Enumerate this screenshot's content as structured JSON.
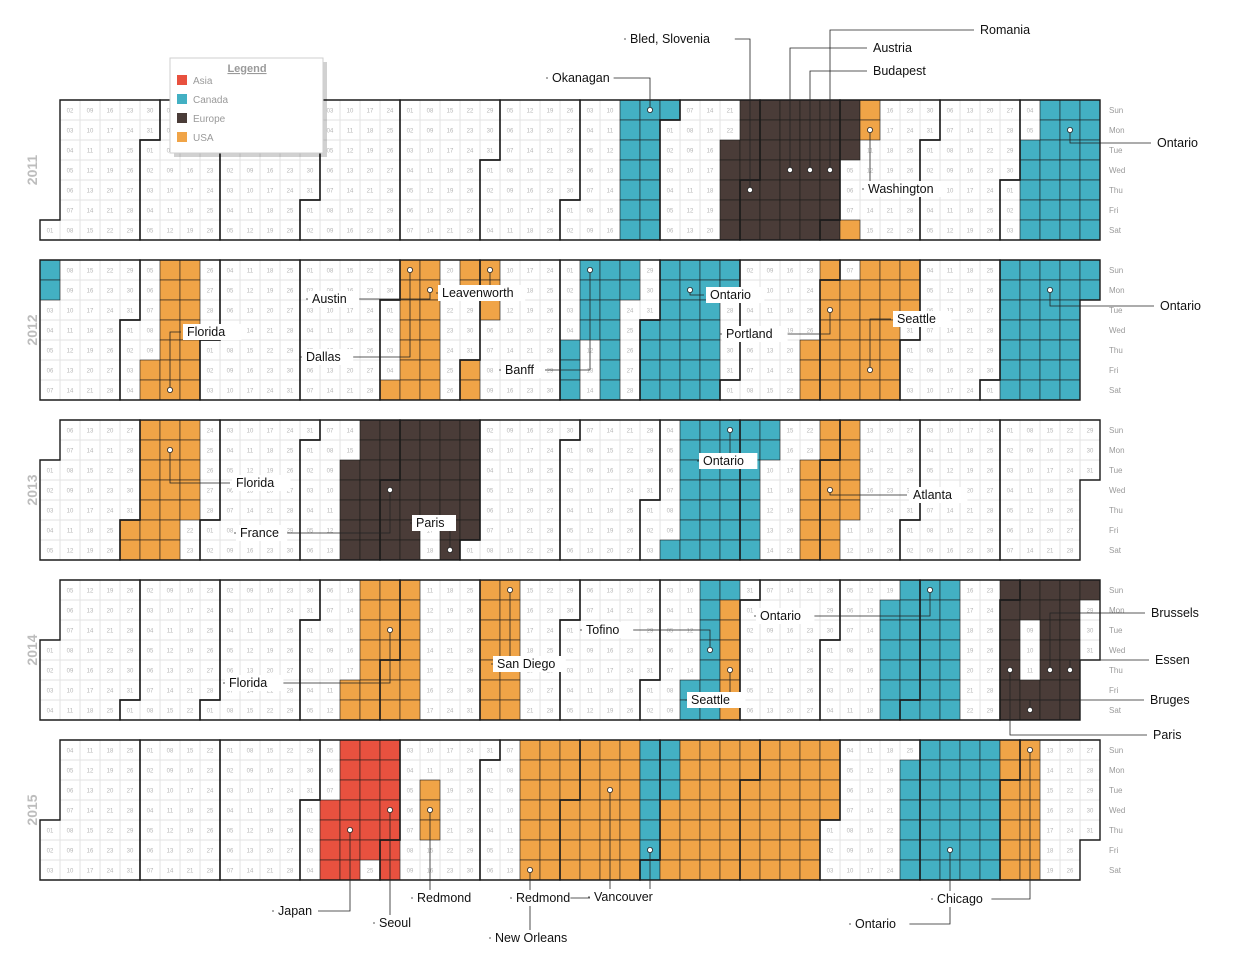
{
  "chart_data": {
    "type": "heatmap",
    "years": [
      "2011",
      "2012",
      "2013",
      "2014",
      "2015"
    ],
    "weekdays": [
      "Sun",
      "Mon",
      "Tue",
      "Wed",
      "Thu",
      "Fri",
      "Sat"
    ],
    "legend": {
      "title": "Legend",
      "items": [
        {
          "label": "Asia",
          "color": "#e8513f"
        },
        {
          "label": "Canada",
          "color": "#43b0c3"
        },
        {
          "label": "Europe",
          "color": "#4a3c38"
        },
        {
          "label": "USA",
          "color": "#f0a447"
        }
      ]
    },
    "trips": [
      {
        "year": "2011",
        "region": "Canada",
        "label": "Okanagan",
        "start": "2011-07-17",
        "end": "2011-07-31"
      },
      {
        "year": "2011",
        "region": "Europe",
        "label": "Bled, Slovenia",
        "start": "2011-08-23",
        "end": "2011-09-10"
      },
      {
        "year": "2011",
        "region": "Europe",
        "label": "Austria",
        "start": "2011-09-11",
        "end": "2011-09-17"
      },
      {
        "year": "2011",
        "region": "Europe",
        "label": "Budapest",
        "start": "2011-09-18",
        "end": "2011-09-24"
      },
      {
        "year": "2011",
        "region": "Europe",
        "label": "Romania",
        "start": "2011-09-25",
        "end": "2011-10-01"
      },
      {
        "year": "2011",
        "region": "Europe",
        "label": "",
        "start": "2011-10-02",
        "end": "2011-10-04"
      },
      {
        "year": "2011",
        "region": "USA",
        "label": "",
        "start": "2011-10-08",
        "end": "2011-10-08"
      },
      {
        "year": "2011",
        "region": "USA",
        "label": "Washington",
        "start": "2011-10-09",
        "end": "2011-10-10"
      },
      {
        "year": "2011",
        "region": "Canada",
        "label": "Ontario",
        "start": "2011-12-06",
        "end": "2011-12-31"
      },
      {
        "year": "2012",
        "region": "Canada",
        "label": "",
        "start": "2012-01-01",
        "end": "2012-01-02"
      },
      {
        "year": "2012",
        "region": "USA",
        "label": "Florida",
        "start": "2012-02-10",
        "end": "2012-02-25"
      },
      {
        "year": "2012",
        "region": "USA",
        "label": "Dallas",
        "start": "2012-05-05",
        "end": "2012-05-07"
      },
      {
        "year": "2012",
        "region": "USA",
        "label": "Austin",
        "start": "2012-05-08",
        "end": "2012-05-19"
      },
      {
        "year": "2012",
        "region": "USA",
        "label": "",
        "start": "2012-05-27",
        "end": "2012-05-28"
      },
      {
        "year": "2012",
        "region": "USA",
        "label": "Leavenworth",
        "start": "2012-06-01",
        "end": "2012-06-05"
      },
      {
        "year": "2012",
        "region": "Canada",
        "label": "Banff",
        "start": "2012-07-05",
        "end": "2012-07-11"
      },
      {
        "year": "2012",
        "region": "Canada",
        "label": "",
        "start": "2012-07-15",
        "end": "2012-07-23"
      },
      {
        "year": "2012",
        "region": "Canada",
        "label": "Ontario",
        "start": "2012-08-01",
        "end": "2012-08-25"
      },
      {
        "year": "2012",
        "region": "Canada",
        "label": "",
        "start": "2012-08-26",
        "end": "2012-08-27"
      },
      {
        "year": "2012",
        "region": "USA",
        "label": "Portland",
        "start": "2012-09-27",
        "end": "2012-10-06"
      },
      {
        "year": "2012",
        "region": "USA",
        "label": "Seattle",
        "start": "2012-10-08",
        "end": "2012-10-30"
      },
      {
        "year": "2012",
        "region": "Canada",
        "label": "Ontario",
        "start": "2012-12-02",
        "end": "2012-12-31"
      },
      {
        "year": "2013",
        "region": "USA",
        "label": "Florida",
        "start": "2013-02-01",
        "end": "2013-02-21"
      },
      {
        "year": "2013",
        "region": "Europe",
        "label": "France",
        "start": "2013-04-16",
        "end": "2013-05-16"
      },
      {
        "year": "2013",
        "region": "Europe",
        "label": "Paris",
        "start": "2013-05-19",
        "end": "2013-05-31"
      },
      {
        "year": "2013",
        "region": "Canada",
        "label": "Ontario",
        "start": "2013-08-10",
        "end": "2013-09-09"
      },
      {
        "year": "2013",
        "region": "USA",
        "label": "Atlanta",
        "start": "2013-09-24",
        "end": "2013-10-10"
      },
      {
        "year": "2014",
        "region": "USA",
        "label": "Florida",
        "start": "2014-04-18",
        "end": "2014-05-10"
      },
      {
        "year": "2014",
        "region": "USA",
        "label": "San Diego",
        "start": "2014-06-01",
        "end": "2014-06-14"
      },
      {
        "year": "2014",
        "region": "Canada",
        "label": "Tofino",
        "start": "2014-08-15",
        "end": "2014-08-24"
      },
      {
        "year": "2014",
        "region": "USA",
        "label": "Seattle",
        "start": "2014-08-25",
        "end": "2014-08-30"
      },
      {
        "year": "2014",
        "region": "Canada",
        "label": "Ontario",
        "start": "2014-10-20",
        "end": "2014-11-15"
      },
      {
        "year": "2014",
        "region": "Europe",
        "label": "Paris",
        "start": "2014-11-30",
        "end": "2014-12-08"
      },
      {
        "year": "2014",
        "region": "Europe",
        "label": "Bruges",
        "start": "2014-12-12",
        "end": "2014-12-14"
      },
      {
        "year": "2014",
        "region": "Europe",
        "label": "Brussels",
        "start": "2014-12-15",
        "end": "2014-12-21"
      },
      {
        "year": "2014",
        "region": "Europe",
        "label": "Essen",
        "start": "2014-12-22",
        "end": "2014-12-28"
      },
      {
        "year": "2015",
        "region": "Asia",
        "label": "Japan",
        "start": "2015-04-08",
        "end": "2015-04-24"
      },
      {
        "year": "2015",
        "region": "Asia",
        "label": "Seoul",
        "start": "2015-04-26",
        "end": "2015-05-02"
      },
      {
        "year": "2015",
        "region": "USA",
        "label": "Redmond",
        "start": "2015-05-12",
        "end": "2015-05-14"
      },
      {
        "year": "2015",
        "region": "USA",
        "label": "New Orleans",
        "start": "2015-06-14",
        "end": "2015-06-25"
      },
      {
        "year": "2015",
        "region": "USA",
        "label": "Redmond",
        "start": "2015-06-26",
        "end": "2015-07-31"
      },
      {
        "year": "2015",
        "region": "Canada",
        "label": "Vancouver",
        "start": "2015-07-26",
        "end": "2015-08-04"
      },
      {
        "year": "2015",
        "region": "USA",
        "label": "",
        "start": "2015-08-05",
        "end": "2015-09-30"
      },
      {
        "year": "2015",
        "region": "Canada",
        "label": "Ontario",
        "start": "2015-10-26",
        "end": "2015-11-30"
      },
      {
        "year": "2015",
        "region": "USA",
        "label": "Chicago",
        "start": "2015-11-29",
        "end": "2015-12-12"
      }
    ],
    "callouts": [
      {
        "year": "2011",
        "text": "Okanagan"
      },
      {
        "year": "2011",
        "text": "Bled, Slovenia"
      },
      {
        "year": "2011",
        "text": "Austria"
      },
      {
        "year": "2011",
        "text": "Budapest"
      },
      {
        "year": "2011",
        "text": "Romania"
      },
      {
        "year": "2011",
        "text": "Washington"
      },
      {
        "year": "2011",
        "text": "Ontario"
      },
      {
        "year": "2012",
        "text": "Florida"
      },
      {
        "year": "2012",
        "text": "Austin"
      },
      {
        "year": "2012",
        "text": "Dallas"
      },
      {
        "year": "2012",
        "text": "Leavenworth"
      },
      {
        "year": "2012",
        "text": "Banff"
      },
      {
        "year": "2012",
        "text": "Ontario"
      },
      {
        "year": "2012",
        "text": "Portland"
      },
      {
        "year": "2012",
        "text": "Seattle"
      },
      {
        "year": "2012",
        "text": "Ontario"
      },
      {
        "year": "2013",
        "text": "Florida"
      },
      {
        "year": "2013",
        "text": "France"
      },
      {
        "year": "2013",
        "text": "Paris"
      },
      {
        "year": "2013",
        "text": "Ontario"
      },
      {
        "year": "2013",
        "text": "Atlanta"
      },
      {
        "year": "2014",
        "text": "Florida"
      },
      {
        "year": "2014",
        "text": "San Diego"
      },
      {
        "year": "2014",
        "text": "Tofino"
      },
      {
        "year": "2014",
        "text": "Seattle"
      },
      {
        "year": "2014",
        "text": "Ontario"
      },
      {
        "year": "2014",
        "text": "Brussels"
      },
      {
        "year": "2014",
        "text": "Essen"
      },
      {
        "year": "2014",
        "text": "Bruges"
      },
      {
        "year": "2014",
        "text": "Paris"
      },
      {
        "year": "2015",
        "text": "Japan"
      },
      {
        "year": "2015",
        "text": "Seoul"
      },
      {
        "year": "2015",
        "text": "Redmond"
      },
      {
        "year": "2015",
        "text": "New Orleans"
      },
      {
        "year": "2015",
        "text": "Redmond"
      },
      {
        "year": "2015",
        "text": "Vancouver"
      },
      {
        "year": "2015",
        "text": "Ontario"
      },
      {
        "year": "2015",
        "text": "Chicago"
      }
    ]
  }
}
